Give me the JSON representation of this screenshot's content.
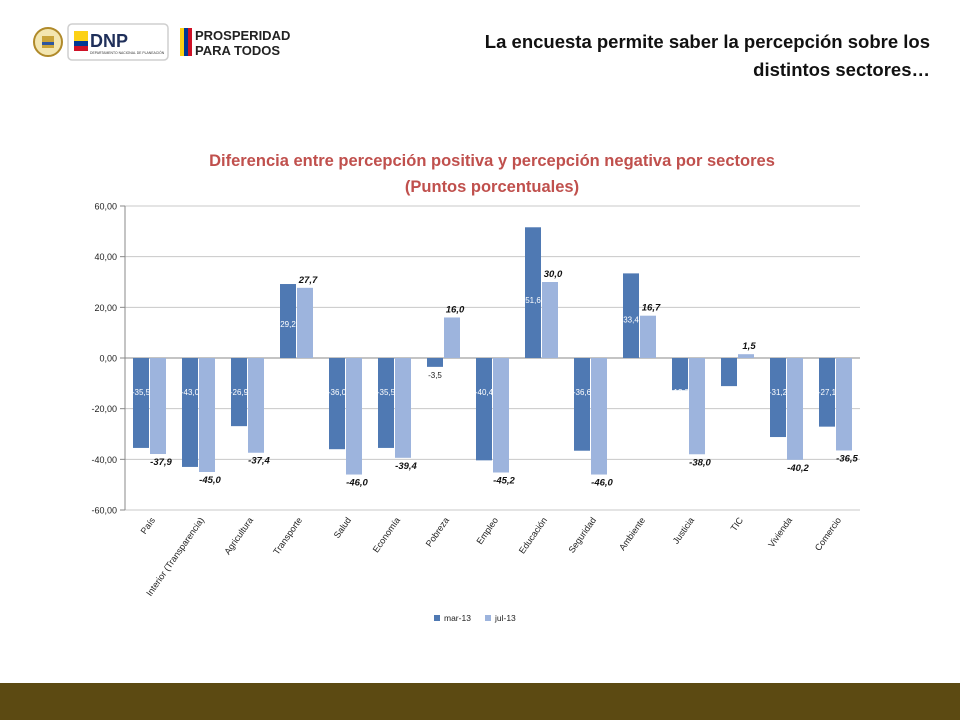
{
  "slide": {
    "title": "La encuesta permite saber la percepción sobre los distintos sectores…"
  },
  "logos": {
    "dnp_text": "DNP",
    "dnp_subtext": "DEPARTAMENTO NACIONAL DE PLANEACIÓN",
    "prosperidad_line1": "PROSPERIDAD",
    "prosperidad_line2": "PARA TODOS"
  },
  "colors": {
    "series1": "#4F79B3",
    "series2": "#9DB4DD",
    "title": "#C0504D",
    "footer": "#5C4A12"
  },
  "chart_data": {
    "type": "bar",
    "title": "Diferencia entre percepción positiva y percepción negativa por sectores",
    "subtitle": "(Puntos porcentuales)",
    "ylim": [
      -60,
      60
    ],
    "yticks": [
      "60,00",
      "40,00",
      "20,00",
      "0,00",
      "-20,00",
      "-40,00",
      "-60,00"
    ],
    "categories": [
      "País",
      "Interior (Transparencia)",
      "Agricultura",
      "Transporte",
      "Salud",
      "Economía",
      "Pobreza",
      "Empleo",
      "Educación",
      "Seguridad",
      "Ambiente",
      "Justicia",
      "TIC",
      "Vivienda",
      "Comercio"
    ],
    "series": [
      {
        "name": "mar-13",
        "values": [
          -35.5,
          -43.0,
          -26.9,
          29.2,
          -36.0,
          -35.5,
          -3.5,
          -40.4,
          51.6,
          -36.6,
          33.4,
          -12.7,
          -11.1,
          -31.2,
          -27.1
        ],
        "labels": [
          "-35,5",
          "-43,0",
          "-26,9",
          "29,2",
          "-36,0",
          "-35,5",
          "-3,5",
          "-40,4",
          "51,6",
          "-36,6",
          "33,4",
          "-12,7",
          "-11,1",
          "-31,2",
          "-27,1"
        ]
      },
      {
        "name": "jul-13",
        "values": [
          -37.9,
          -45.0,
          -37.4,
          27.7,
          -46.0,
          -39.4,
          16.0,
          -45.2,
          30.0,
          -46.0,
          16.7,
          -38.0,
          1.5,
          -40.2,
          -36.5
        ],
        "labels": [
          "-37,9",
          "-45,0",
          "-37,4",
          "27,7",
          "-46,0",
          "-39,4",
          "16,0",
          "-45,2",
          "30,0",
          "-46,0",
          "16,7",
          "-38,0",
          "1,5",
          "-40,2",
          "-36,5"
        ]
      }
    ],
    "legend_position": "bottom"
  }
}
